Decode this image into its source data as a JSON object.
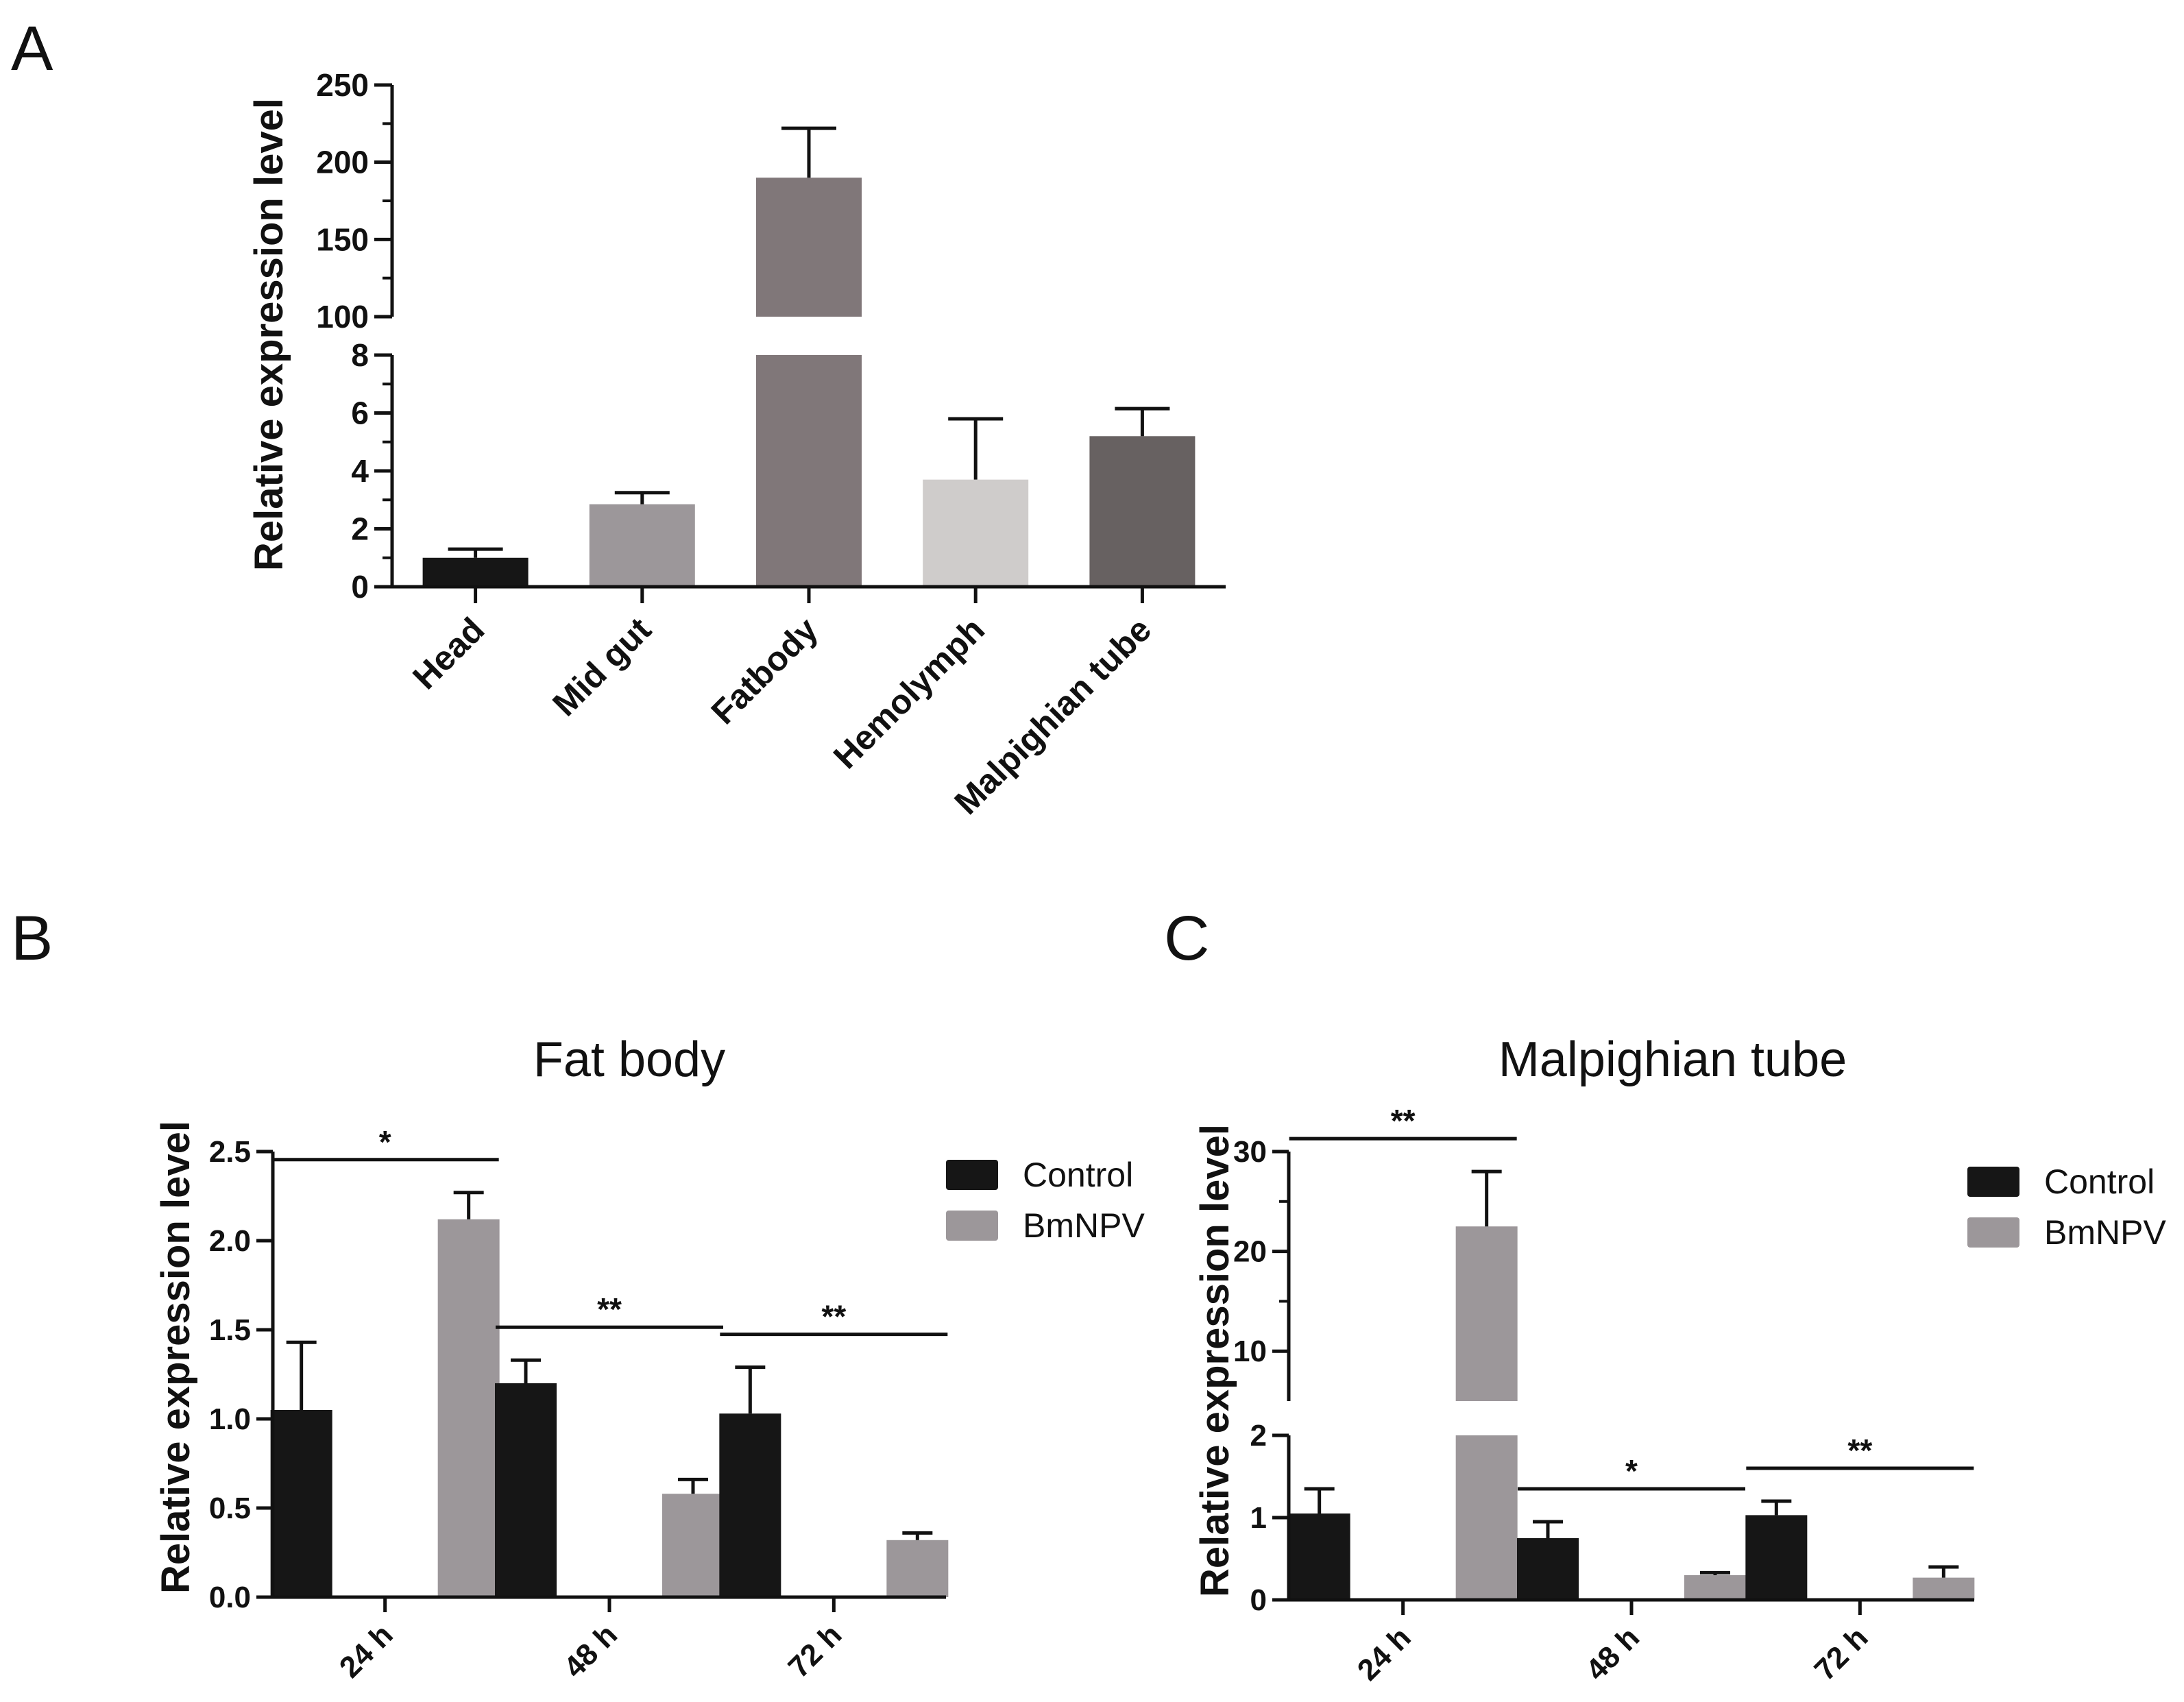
{
  "panels": {
    "a": {
      "letter": "A"
    },
    "b": {
      "letter": "B"
    },
    "c": {
      "letter": "C"
    }
  },
  "chart_data": [
    {
      "id": "A",
      "type": "bar",
      "title": "",
      "xlabel": "",
      "ylabel": "Relative expression level",
      "categories": [
        "Head",
        "Mid gut",
        "Fatbody",
        "Hemolymph",
        "Malpighian tube"
      ],
      "values": [
        1.0,
        2.85,
        190,
        3.7,
        5.2
      ],
      "errors": [
        0.3,
        0.4,
        32,
        2.1,
        0.95
      ],
      "colors": [
        "#161616",
        "#9c979a",
        "#807779",
        "#cfcccb",
        "#676161"
      ],
      "y_axis_break": {
        "lower_segment": [
          0,
          8
        ],
        "upper_segment": [
          100,
          250
        ],
        "lower_ticks": [
          0,
          2,
          4,
          6,
          8
        ],
        "upper_ticks": [
          100,
          150,
          200,
          250
        ],
        "tick_labels_lower": [
          "0",
          "2",
          "4",
          "6",
          "8"
        ],
        "tick_labels_upper": [
          "100",
          "150",
          "200",
          "250"
        ]
      }
    },
    {
      "id": "B",
      "type": "bar",
      "title": "Fat body",
      "xlabel": "",
      "ylabel": "Relative expression level",
      "categories": [
        "24 h",
        "48 h",
        "72 h"
      ],
      "series": [
        {
          "name": "Control",
          "color": "#161616",
          "values": [
            1.05,
            1.2,
            1.03
          ],
          "errors": [
            0.38,
            0.13,
            0.26
          ]
        },
        {
          "name": "BmNPV",
          "color": "#9c979a",
          "values": [
            2.12,
            0.58,
            0.32
          ],
          "errors": [
            0.15,
            0.08,
            0.04
          ]
        }
      ],
      "ylim": [
        0,
        2.5
      ],
      "y_ticks": [
        0,
        0.5,
        1.0,
        1.5,
        2.0,
        2.5
      ],
      "tick_labels": [
        "0.0",
        "0.5",
        "1.0",
        "1.5",
        "2.0",
        "2.5"
      ],
      "significance": [
        "*",
        "**",
        "**"
      ],
      "legend": {
        "position": "top-right",
        "entries": [
          "Control",
          "BmNPV"
        ]
      }
    },
    {
      "id": "C",
      "type": "bar",
      "title": "Malpighian tube",
      "xlabel": "",
      "ylabel": "Relative expression level",
      "categories": [
        "24 h",
        "48 h",
        "72 h"
      ],
      "series": [
        {
          "name": "Control",
          "color": "#161616",
          "values": [
            1.05,
            0.75,
            1.03
          ],
          "errors": [
            0.3,
            0.2,
            0.17
          ]
        },
        {
          "name": "BmNPV",
          "color": "#9c979a",
          "values": [
            22.5,
            0.3,
            0.27
          ],
          "errors": [
            5.5,
            0.03,
            0.13
          ]
        }
      ],
      "y_axis_break": {
        "lower_segment": [
          0,
          2
        ],
        "upper_segment": [
          5,
          30
        ],
        "lower_ticks": [
          0,
          1,
          2
        ],
        "upper_ticks": [
          10,
          20,
          30
        ],
        "tick_labels_lower": [
          "0",
          "1",
          "2"
        ],
        "tick_labels_upper": [
          "10",
          "20",
          "30"
        ]
      },
      "significance": [
        "**",
        "*",
        "**"
      ],
      "legend": {
        "position": "top-right",
        "entries": [
          "Control",
          "BmNPV"
        ]
      }
    }
  ]
}
